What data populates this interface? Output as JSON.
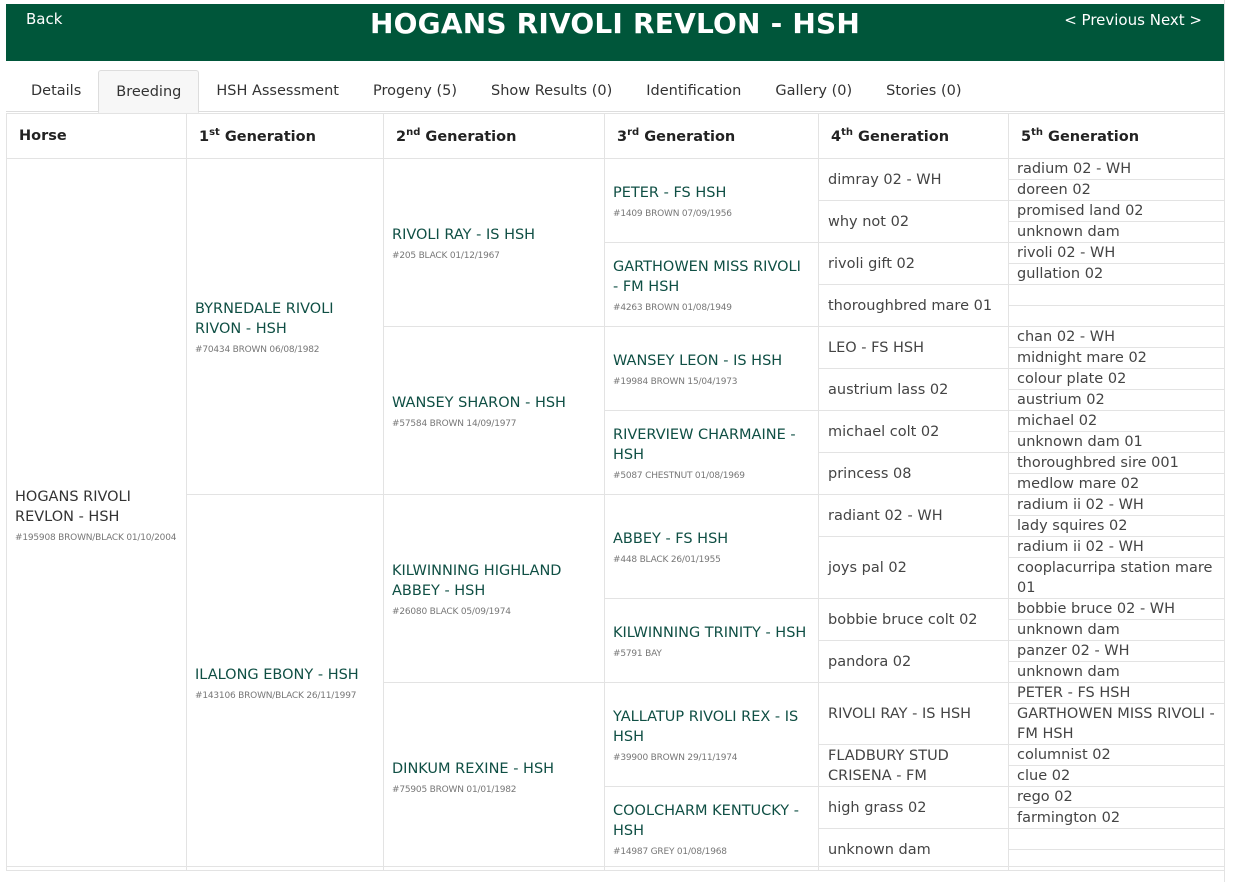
{
  "header": {
    "back_label": "Back",
    "title": "HOGANS RIVOLI REVLON - HSH",
    "previous_label": "< Previous",
    "next_label": "Next >",
    "color": "#00563a"
  },
  "tabs": [
    {
      "label": "Details",
      "active": false
    },
    {
      "label": "Breeding",
      "active": true
    },
    {
      "label": "HSH Assessment",
      "active": false
    },
    {
      "label": "Progeny (5)",
      "active": false
    },
    {
      "label": "Show Results (0)",
      "active": false
    },
    {
      "label": "Identification",
      "active": false
    },
    {
      "label": "Gallery (0)",
      "active": false
    },
    {
      "label": "Stories (0)",
      "active": false
    }
  ],
  "columns": [
    {
      "num": "Horse",
      "sup": "",
      "label": ""
    },
    {
      "num": "1",
      "sup": "st",
      "label": " Generation"
    },
    {
      "num": "2",
      "sup": "nd",
      "label": " Generation"
    },
    {
      "num": "3",
      "sup": "rd",
      "label": " Generation"
    },
    {
      "num": "4",
      "sup": "th",
      "label": " Generation"
    },
    {
      "num": "5",
      "sup": "th",
      "label": " Generation"
    }
  ],
  "horse": {
    "name": "HOGANS RIVOLI REVLON - HSH",
    "info": "#195908 BROWN/BLACK 01/10/2004"
  },
  "gen1": [
    {
      "name": "BYRNEDALE RIVOLI RIVON - HSH",
      "info": "#70434 BROWN 06/08/1982"
    },
    {
      "name": "ILALONG EBONY - HSH",
      "info": "#143106 BROWN/BLACK 26/11/1997"
    }
  ],
  "gen2": [
    {
      "name": "RIVOLI RAY - IS HSH",
      "info": "#205 BLACK 01/12/1967"
    },
    {
      "name": "WANSEY SHARON - HSH",
      "info": "#57584 BROWN 14/09/1977"
    },
    {
      "name": "KILWINNING HIGHLAND ABBEY - HSH",
      "info": "#26080 BLACK 05/09/1974"
    },
    {
      "name": "DINKUM REXINE - HSH",
      "info": "#75905 BROWN 01/01/1982"
    }
  ],
  "gen3": [
    {
      "name": "PETER - FS HSH",
      "info": "#1409 BROWN 07/09/1956"
    },
    {
      "name": "GARTHOWEN MISS RIVOLI - FM HSH",
      "info": "#4263 BROWN 01/08/1949"
    },
    {
      "name": "WANSEY LEON - IS HSH",
      "info": "#19984 BROWN 15/04/1973"
    },
    {
      "name": "RIVERVIEW CHARMAINE - HSH",
      "info": "#5087 CHESTNUT 01/08/1969"
    },
    {
      "name": "ABBEY - FS HSH",
      "info": "#448 BLACK 26/01/1955"
    },
    {
      "name": "KILWINNING TRINITY - HSH",
      "info": "#5791 BAY"
    },
    {
      "name": "YALLATUP RIVOLI REX - IS HSH",
      "info": "#39900 BROWN 29/11/1974"
    },
    {
      "name": "COOLCHARM KENTUCKY - HSH",
      "info": "#14987 GREY 01/08/1968"
    }
  ],
  "gen4": [
    "dimray 02 - WH",
    "why not 02",
    "rivoli gift 02",
    "thoroughbred mare 01",
    "LEO - FS HSH",
    "austrium lass 02",
    "michael colt 02",
    "princess 08",
    "radiant 02 - WH",
    "joys pal 02",
    "bobbie bruce colt 02",
    "pandora 02",
    "RIVOLI RAY - IS HSH",
    "FLADBURY STUD CRISENA - FM",
    "high grass 02",
    "unknown dam"
  ],
  "gen5": [
    "radium 02 - WH",
    "doreen 02",
    "promised land 02",
    "unknown dam",
    "rivoli 02 - WH",
    "gullation 02",
    "",
    "",
    "chan 02 - WH",
    "midnight mare 02",
    "colour plate 02",
    "austrium 02",
    "michael 02",
    "unknown dam 01",
    "thoroughbred sire 001",
    "medlow mare 02",
    "radium ii 02 - WH",
    "lady squires 02",
    "radium ii 02 - WH",
    "cooplacurripa station mare 01",
    "bobbie bruce 02 - WH",
    "unknown dam",
    "panzer 02 - WH",
    "unknown dam",
    "PETER - FS HSH",
    "GARTHOWEN MISS RIVOLI - FM HSH",
    "columnist 02",
    "clue 02",
    "rego 02",
    "farmington 02",
    "",
    ""
  ]
}
